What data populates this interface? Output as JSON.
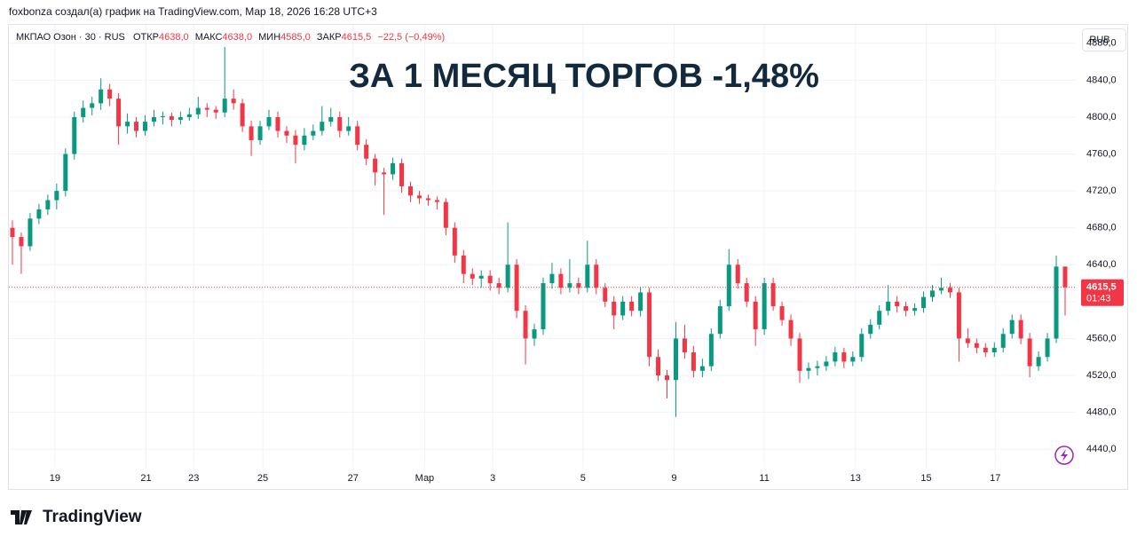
{
  "chart_data": {
    "type": "candlestick",
    "attribution": "foxbonza создал(а) график на TradingView.com, Мар 18, 2026 16:28 UTC+3",
    "symbol": "МКПАО Озон · 30 · RUS",
    "ohlc_labels": [
      "ОТКР",
      "МАКС",
      "МИН",
      "ЗАКР"
    ],
    "ohlc_values": [
      "4638,0",
      "4638,0",
      "4585,0",
      "4615,5"
    ],
    "change": "−22,5 (−0,49%)",
    "title": "ЗА 1 МЕСЯЦ ТОРГОВ -1,48%",
    "currency": "RUB",
    "logo": "TradingView",
    "up_color": "#089981",
    "down_color": "#f23645",
    "last_price": {
      "value": 4615.5,
      "label": "4615,5"
    },
    "countdown": "01:43",
    "ylim": [
      4420,
      4900
    ],
    "yticks": [
      {
        "value": 4440,
        "label": "4440,0"
      },
      {
        "value": 4480,
        "label": "4480,0"
      },
      {
        "value": 4520,
        "label": "4520,0"
      },
      {
        "value": 4560,
        "label": "4560,0"
      },
      {
        "value": 4600,
        "label": "4600,0"
      },
      {
        "value": 4640,
        "label": "4640,0"
      },
      {
        "value": 4680,
        "label": "4680,0"
      },
      {
        "value": 4720,
        "label": "4720,0"
      },
      {
        "value": 4760,
        "label": "4760,0"
      },
      {
        "value": 4800,
        "label": "4800,0"
      },
      {
        "value": 4840,
        "label": "4840,0"
      },
      {
        "value": 4880,
        "label": "4880,0"
      }
    ],
    "xticks": [
      {
        "value": 4.8,
        "label": "19"
      },
      {
        "value": 15.1,
        "label": "21"
      },
      {
        "value": 20.5,
        "label": "23"
      },
      {
        "value": 28.3,
        "label": "25"
      },
      {
        "value": 38.5,
        "label": "27"
      },
      {
        "value": 46.6,
        "label": "Мар"
      },
      {
        "value": 54.3,
        "label": "3"
      },
      {
        "value": 64.5,
        "label": "5"
      },
      {
        "value": 74.8,
        "label": "9"
      },
      {
        "value": 85,
        "label": "11"
      },
      {
        "value": 95.3,
        "label": "13"
      },
      {
        "value": 103.3,
        "label": "15"
      },
      {
        "value": 111.1,
        "label": "17"
      }
    ],
    "grid": true,
    "ohlc": [
      [
        4680,
        4688,
        4640,
        4670
      ],
      [
        4670,
        4675,
        4630,
        4660
      ],
      [
        4660,
        4696,
        4655,
        4690
      ],
      [
        4690,
        4706,
        4684,
        4700
      ],
      [
        4700,
        4716,
        4694,
        4710
      ],
      [
        4710,
        4728,
        4700,
        4720
      ],
      [
        4720,
        4766,
        4714,
        4760
      ],
      [
        4760,
        4806,
        4754,
        4800
      ],
      [
        4800,
        4818,
        4794,
        4810
      ],
      [
        4810,
        4822,
        4802,
        4815
      ],
      [
        4815,
        4842,
        4808,
        4830
      ],
      [
        4830,
        4836,
        4812,
        4820
      ],
      [
        4820,
        4826,
        4770,
        4790
      ],
      [
        4790,
        4804,
        4782,
        4795
      ],
      [
        4795,
        4800,
        4778,
        4785
      ],
      [
        4785,
        4802,
        4780,
        4795
      ],
      [
        4795,
        4808,
        4790,
        4800
      ],
      [
        4800,
        4806,
        4792,
        4801
      ],
      [
        4801,
        4805,
        4790,
        4797
      ],
      [
        4797,
        4806,
        4792,
        4800
      ],
      [
        4800,
        4810,
        4796,
        4803
      ],
      [
        4803,
        4822,
        4798,
        4810
      ],
      [
        4810,
        4815,
        4800,
        4808
      ],
      [
        4808,
        4812,
        4798,
        4805
      ],
      [
        4805,
        4876,
        4800,
        4820
      ],
      [
        4820,
        4830,
        4808,
        4815
      ],
      [
        4815,
        4820,
        4784,
        4790
      ],
      [
        4790,
        4796,
        4758,
        4775
      ],
      [
        4775,
        4796,
        4770,
        4790
      ],
      [
        4790,
        4808,
        4786,
        4800
      ],
      [
        4800,
        4806,
        4778,
        4785
      ],
      [
        4785,
        4790,
        4772,
        4780
      ],
      [
        4780,
        4786,
        4750,
        4770
      ],
      [
        4770,
        4788,
        4764,
        4780
      ],
      [
        4780,
        4792,
        4775,
        4785
      ],
      [
        4785,
        4812,
        4780,
        4795
      ],
      [
        4795,
        4810,
        4790,
        4800
      ],
      [
        4800,
        4806,
        4778,
        4785
      ],
      [
        4785,
        4800,
        4780,
        4790
      ],
      [
        4790,
        4796,
        4764,
        4770
      ],
      [
        4770,
        4776,
        4748,
        4755
      ],
      [
        4755,
        4760,
        4726,
        4740
      ],
      [
        4740,
        4745,
        4694,
        4738
      ],
      [
        4738,
        4756,
        4732,
        4750
      ],
      [
        4750,
        4755,
        4718,
        4725
      ],
      [
        4725,
        4730,
        4708,
        4715
      ],
      [
        4715,
        4720,
        4706,
        4712
      ],
      [
        4712,
        4716,
        4704,
        4710
      ],
      [
        4710,
        4714,
        4700,
        4708
      ],
      [
        4708,
        4712,
        4672,
        4680
      ],
      [
        4680,
        4686,
        4642,
        4650
      ],
      [
        4650,
        4656,
        4620,
        4630
      ],
      [
        4630,
        4636,
        4618,
        4625
      ],
      [
        4625,
        4634,
        4615,
        4628
      ],
      [
        4628,
        4634,
        4612,
        4620
      ],
      [
        4620,
        4626,
        4608,
        4615
      ],
      [
        4615,
        4686,
        4610,
        4640
      ],
      [
        4640,
        4646,
        4582,
        4590
      ],
      [
        4590,
        4596,
        4532,
        4560
      ],
      [
        4560,
        4576,
        4552,
        4570
      ],
      [
        4570,
        4626,
        4564,
        4620
      ],
      [
        4620,
        4642,
        4614,
        4630
      ],
      [
        4630,
        4636,
        4608,
        4615
      ],
      [
        4615,
        4646,
        4610,
        4620
      ],
      [
        4620,
        4626,
        4608,
        4615
      ],
      [
        4615,
        4666,
        4610,
        4640
      ],
      [
        4640,
        4646,
        4608,
        4615
      ],
      [
        4615,
        4620,
        4594,
        4600
      ],
      [
        4600,
        4606,
        4570,
        4585
      ],
      [
        4585,
        4606,
        4580,
        4600
      ],
      [
        4600,
        4606,
        4584,
        4590
      ],
      [
        4590,
        4616,
        4584,
        4610
      ],
      [
        4610,
        4615,
        4530,
        4540
      ],
      [
        4540,
        4548,
        4514,
        4520
      ],
      [
        4520,
        4526,
        4495,
        4515
      ],
      [
        4515,
        4578,
        4475,
        4560
      ],
      [
        4560,
        4575,
        4538,
        4545
      ],
      [
        4545,
        4552,
        4518,
        4525
      ],
      [
        4525,
        4538,
        4518,
        4530
      ],
      [
        4530,
        4571,
        4525,
        4565
      ],
      [
        4565,
        4602,
        4560,
        4595
      ],
      [
        4595,
        4657,
        4590,
        4640
      ],
      [
        4640,
        4646,
        4614,
        4620
      ],
      [
        4620,
        4626,
        4594,
        4600
      ],
      [
        4600,
        4606,
        4552,
        4570
      ],
      [
        4570,
        4626,
        4564,
        4620
      ],
      [
        4620,
        4626,
        4590,
        4595
      ],
      [
        4595,
        4600,
        4574,
        4580
      ],
      [
        4580,
        4586,
        4552,
        4560
      ],
      [
        4560,
        4566,
        4512,
        4525
      ],
      [
        4525,
        4534,
        4516,
        4528
      ],
      [
        4528,
        4536,
        4520,
        4530
      ],
      [
        4530,
        4541,
        4525,
        4535
      ],
      [
        4535,
        4551,
        4530,
        4545
      ],
      [
        4545,
        4550,
        4528,
        4535
      ],
      [
        4535,
        4546,
        4530,
        4540
      ],
      [
        4540,
        4571,
        4535,
        4565
      ],
      [
        4565,
        4581,
        4560,
        4575
      ],
      [
        4575,
        4596,
        4570,
        4590
      ],
      [
        4590,
        4618,
        4585,
        4600
      ],
      [
        4600,
        4606,
        4588,
        4595
      ],
      [
        4595,
        4600,
        4584,
        4590
      ],
      [
        4590,
        4598,
        4585,
        4593
      ],
      [
        4593,
        4611,
        4588,
        4605
      ],
      [
        4605,
        4618,
        4600,
        4612
      ],
      [
        4612,
        4626,
        4608,
        4615
      ],
      [
        4615,
        4620,
        4604,
        4610
      ],
      [
        4610,
        4615,
        4535,
        4560
      ],
      [
        4560,
        4571,
        4550,
        4555
      ],
      [
        4555,
        4560,
        4544,
        4550
      ],
      [
        4550,
        4555,
        4540,
        4545
      ],
      [
        4545,
        4556,
        4540,
        4550
      ],
      [
        4550,
        4571,
        4545,
        4565
      ],
      [
        4565,
        4586,
        4560,
        4580
      ],
      [
        4580,
        4586,
        4554,
        4560
      ],
      [
        4560,
        4566,
        4518,
        4530
      ],
      [
        4530,
        4546,
        4525,
        4540
      ],
      [
        4540,
        4566,
        4535,
        4560
      ],
      [
        4560,
        4650,
        4555,
        4638
      ],
      [
        4638,
        4638,
        4585,
        4615.5
      ]
    ]
  }
}
